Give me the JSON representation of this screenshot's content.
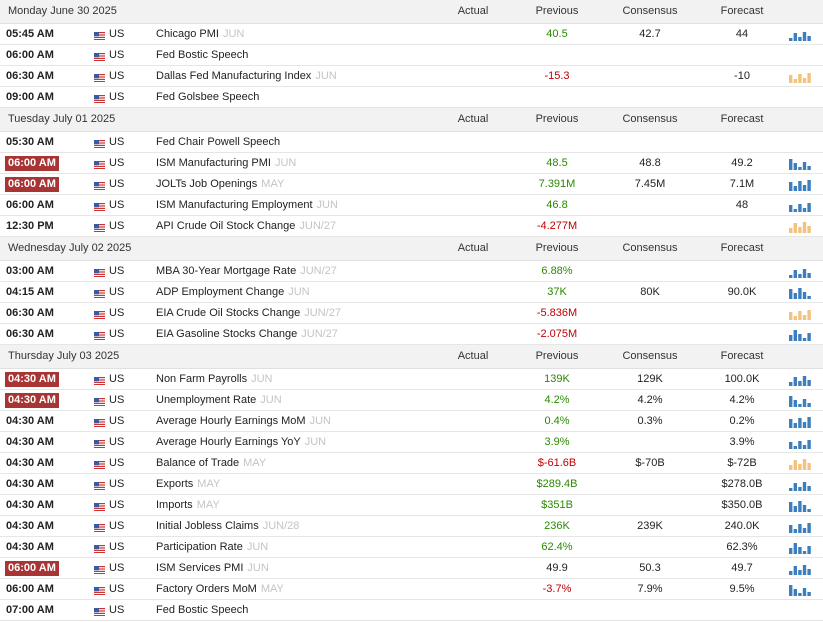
{
  "days": [
    {
      "date": "Monday June 30 2025",
      "columns": [
        "Actual",
        "Previous",
        "Consensus",
        "Forecast"
      ],
      "events": [
        {
          "time": "05:45 AM",
          "country": "US",
          "name": "Chicago PMI",
          "period": "JUN",
          "previous": "40.5",
          "previous_color": "green",
          "consensus": "42.7",
          "forecast": "44",
          "spark_color": "#3d7ebf"
        },
        {
          "time": "06:00 AM",
          "country": "US",
          "name": "Fed Bostic Speech"
        },
        {
          "time": "06:30 AM",
          "country": "US",
          "name": "Dallas Fed Manufacturing Index",
          "period": "JUN",
          "previous": "-15.3",
          "previous_color": "red",
          "forecast": "-10",
          "spark_color": "#f2c27e"
        },
        {
          "time": "09:00 AM",
          "country": "US",
          "name": "Fed Golsbee Speech"
        }
      ]
    },
    {
      "date": "Tuesday July 01 2025",
      "columns": [
        "Actual",
        "Previous",
        "Consensus",
        "Forecast"
      ],
      "events": [
        {
          "time": "05:30 AM",
          "country": "US",
          "name": "Fed Chair Powell Speech"
        },
        {
          "time": "06:00 AM",
          "highlight": true,
          "country": "US",
          "name": "ISM Manufacturing PMI",
          "period": "JUN",
          "previous": "48.5",
          "previous_color": "green",
          "consensus": "48.8",
          "forecast": "49.2",
          "spark_color": "#3d7ebf"
        },
        {
          "time": "06:00 AM",
          "highlight": true,
          "country": "US",
          "name": "JOLTs Job Openings",
          "period": "MAY",
          "previous": "7.391M",
          "previous_color": "green",
          "consensus": "7.45M",
          "forecast": "7.1M",
          "spark_color": "#3d7ebf"
        },
        {
          "time": "06:00 AM",
          "country": "US",
          "name": "ISM Manufacturing Employment",
          "period": "JUN",
          "previous": "46.8",
          "previous_color": "green",
          "forecast": "48",
          "spark_color": "#3d7ebf"
        },
        {
          "time": "12:30 PM",
          "country": "US",
          "name": "API Crude Oil Stock Change",
          "period": "JUN/27",
          "previous": "-4.277M",
          "previous_color": "red",
          "spark_color": "#f2c27e"
        }
      ]
    },
    {
      "date": "Wednesday July 02 2025",
      "columns": [
        "Actual",
        "Previous",
        "Consensus",
        "Forecast"
      ],
      "events": [
        {
          "time": "03:00 AM",
          "country": "US",
          "name": "MBA 30-Year Mortgage Rate",
          "period": "JUN/27",
          "previous": "6.88%",
          "previous_color": "green",
          "spark_color": "#3d7ebf"
        },
        {
          "time": "04:15 AM",
          "country": "US",
          "name": "ADP Employment Change",
          "period": "JUN",
          "previous": "37K",
          "previous_color": "green",
          "consensus": "80K",
          "forecast": "90.0K",
          "spark_color": "#3d7ebf"
        },
        {
          "time": "06:30 AM",
          "country": "US",
          "name": "EIA Crude Oil Stocks Change",
          "period": "JUN/27",
          "previous": "-5.836M",
          "previous_color": "red",
          "spark_color": "#f2c27e"
        },
        {
          "time": "06:30 AM",
          "country": "US",
          "name": "EIA Gasoline Stocks Change",
          "period": "JUN/27",
          "previous": "-2.075M",
          "previous_color": "red",
          "spark_color": "#3d7ebf"
        }
      ]
    },
    {
      "date": "Thursday July 03 2025",
      "columns": [
        "Actual",
        "Previous",
        "Consensus",
        "Forecast"
      ],
      "events": [
        {
          "time": "04:30 AM",
          "highlight": true,
          "country": "US",
          "name": "Non Farm Payrolls",
          "period": "JUN",
          "previous": "139K",
          "previous_color": "green",
          "consensus": "129K",
          "forecast": "100.0K",
          "spark_color": "#3d7ebf"
        },
        {
          "time": "04:30 AM",
          "highlight": true,
          "country": "US",
          "name": "Unemployment Rate",
          "period": "JUN",
          "previous": "4.2%",
          "previous_color": "green",
          "consensus": "4.2%",
          "forecast": "4.2%",
          "spark_color": "#3d7ebf"
        },
        {
          "time": "04:30 AM",
          "country": "US",
          "name": "Average Hourly Earnings MoM",
          "period": "JUN",
          "previous": "0.4%",
          "previous_color": "green",
          "consensus": "0.3%",
          "forecast": "0.2%",
          "spark_color": "#3d7ebf"
        },
        {
          "time": "04:30 AM",
          "country": "US",
          "name": "Average Hourly Earnings YoY",
          "period": "JUN",
          "previous": "3.9%",
          "previous_color": "green",
          "forecast": "3.9%",
          "spark_color": "#3d7ebf"
        },
        {
          "time": "04:30 AM",
          "country": "US",
          "name": "Balance of Trade",
          "period": "MAY",
          "previous": "$-61.6B",
          "previous_color": "red",
          "consensus": "$-70B",
          "forecast": "$-72B",
          "spark_color": "#f2c27e"
        },
        {
          "time": "04:30 AM",
          "country": "US",
          "name": "Exports",
          "period": "MAY",
          "previous": "$289.4B",
          "previous_color": "green",
          "forecast": "$278.0B",
          "spark_color": "#3d7ebf"
        },
        {
          "time": "04:30 AM",
          "country": "US",
          "name": "Imports",
          "period": "MAY",
          "previous": "$351B",
          "previous_color": "green",
          "forecast": "$350.0B",
          "spark_color": "#3d7ebf"
        },
        {
          "time": "04:30 AM",
          "country": "US",
          "name": "Initial Jobless Claims",
          "period": "JUN/28",
          "previous": "236K",
          "previous_color": "green",
          "consensus": "239K",
          "forecast": "240.0K",
          "spark_color": "#3d7ebf"
        },
        {
          "time": "04:30 AM",
          "country": "US",
          "name": "Participation Rate",
          "period": "JUN",
          "previous": "62.4%",
          "previous_color": "green",
          "forecast": "62.3%",
          "spark_color": "#3d7ebf"
        },
        {
          "time": "06:00 AM",
          "highlight": true,
          "country": "US",
          "name": "ISM Services PMI",
          "period": "JUN",
          "previous": "49.9",
          "consensus": "50.3",
          "forecast": "49.7",
          "spark_color": "#3d7ebf"
        },
        {
          "time": "06:00 AM",
          "country": "US",
          "name": "Factory Orders MoM",
          "period": "MAY",
          "previous": "-3.7%",
          "previous_color": "red",
          "consensus": "7.9%",
          "forecast": "9.5%",
          "spark_color": "#3d7ebf"
        },
        {
          "time": "07:00 AM",
          "country": "US",
          "name": "Fed Bostic Speech"
        }
      ]
    }
  ]
}
